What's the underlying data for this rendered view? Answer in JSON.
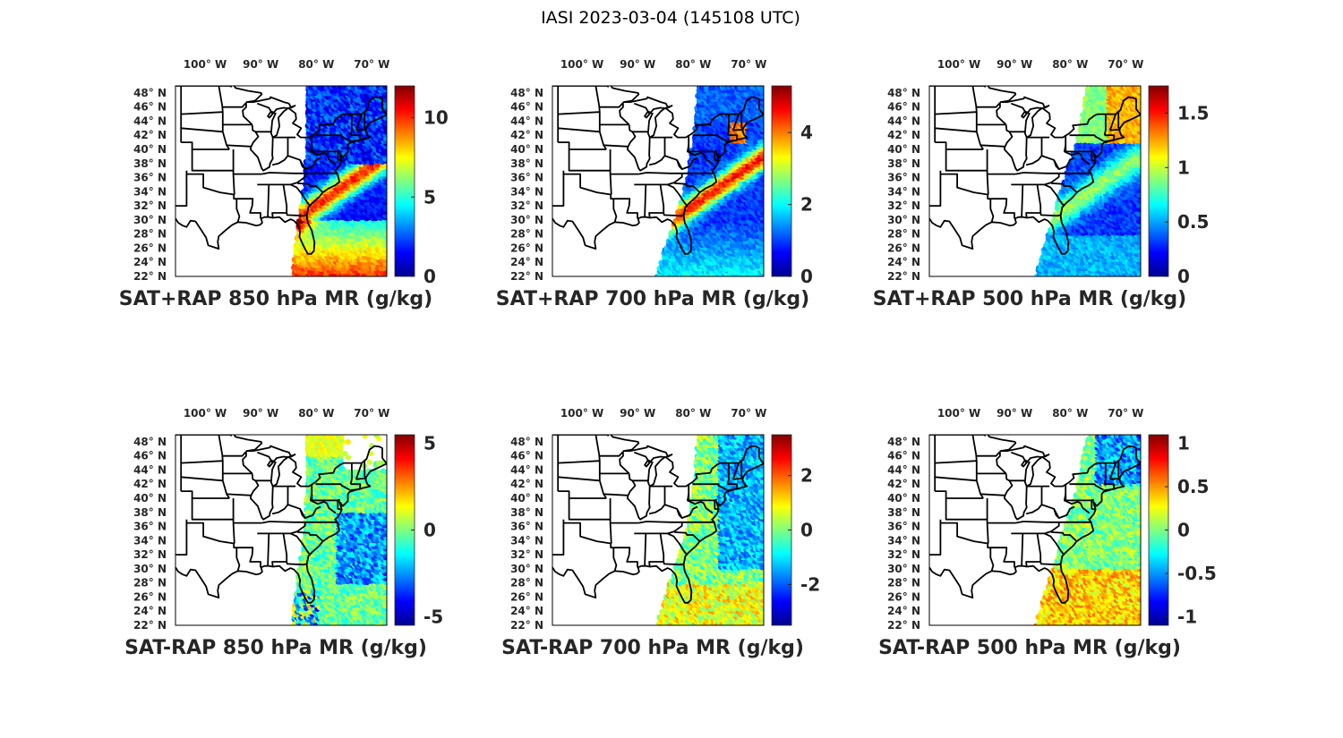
{
  "figure": {
    "title": "IASI 2023-03-04 (145108 UTC)",
    "lon_ticks": [
      "100° W",
      "90° W",
      "80° W",
      "70° W"
    ],
    "lat_ticks": [
      "48° N",
      "46° N",
      "44° N",
      "42° N",
      "40° N",
      "38° N",
      "36° N",
      "34° N",
      "32° N",
      "30° N",
      "28° N",
      "26° N",
      "24° N",
      "22° N"
    ],
    "colormap": "jet",
    "diff_colormap": "jet",
    "map_extent": {
      "lon": [
        -105,
        -67
      ],
      "lat": [
        22,
        49
      ]
    }
  },
  "panels": [
    {
      "title": "SAT+RAP 850 hPa MR (g/kg)",
      "clim": [
        0,
        12
      ],
      "cb_ticks": [
        "10",
        "5",
        "0"
      ],
      "cb_tick_values": [
        10,
        5,
        0
      ],
      "field": "total850"
    },
    {
      "title": "SAT+RAP 700 hPa MR (g/kg)",
      "clim": [
        0,
        5.3
      ],
      "cb_ticks": [
        "4",
        "2",
        "0"
      ],
      "cb_tick_values": [
        4,
        2,
        0
      ],
      "field": "total700"
    },
    {
      "title": "SAT+RAP 500 hPa MR (g/kg)",
      "clim": [
        0,
        1.75
      ],
      "cb_ticks": [
        "1.5",
        "1",
        "0.5",
        "0"
      ],
      "cb_tick_values": [
        1.5,
        1,
        0.5,
        0
      ],
      "field": "total500"
    },
    {
      "title": "SAT-RAP 850 hPa MR (g/kg)",
      "clim": [
        -5.5,
        5.5
      ],
      "cb_ticks": [
        "5",
        "0",
        "-5"
      ],
      "cb_tick_values": [
        5,
        0,
        -5
      ],
      "field": "diff850"
    },
    {
      "title": "SAT-RAP 700 hPa MR (g/kg)",
      "clim": [
        -3.5,
        3.5
      ],
      "cb_ticks": [
        "2",
        "0",
        "-2"
      ],
      "cb_tick_values": [
        2,
        0,
        -2
      ],
      "field": "diff700"
    },
    {
      "title": "SAT-RAP 500 hPa MR (g/kg)",
      "clim": [
        -1.1,
        1.1
      ],
      "cb_ticks": [
        "1",
        "0.5",
        "0",
        "-0.5",
        "-1"
      ],
      "cb_tick_values": [
        1,
        0.5,
        0,
        -0.5,
        -1
      ],
      "field": "diff500"
    }
  ]
}
